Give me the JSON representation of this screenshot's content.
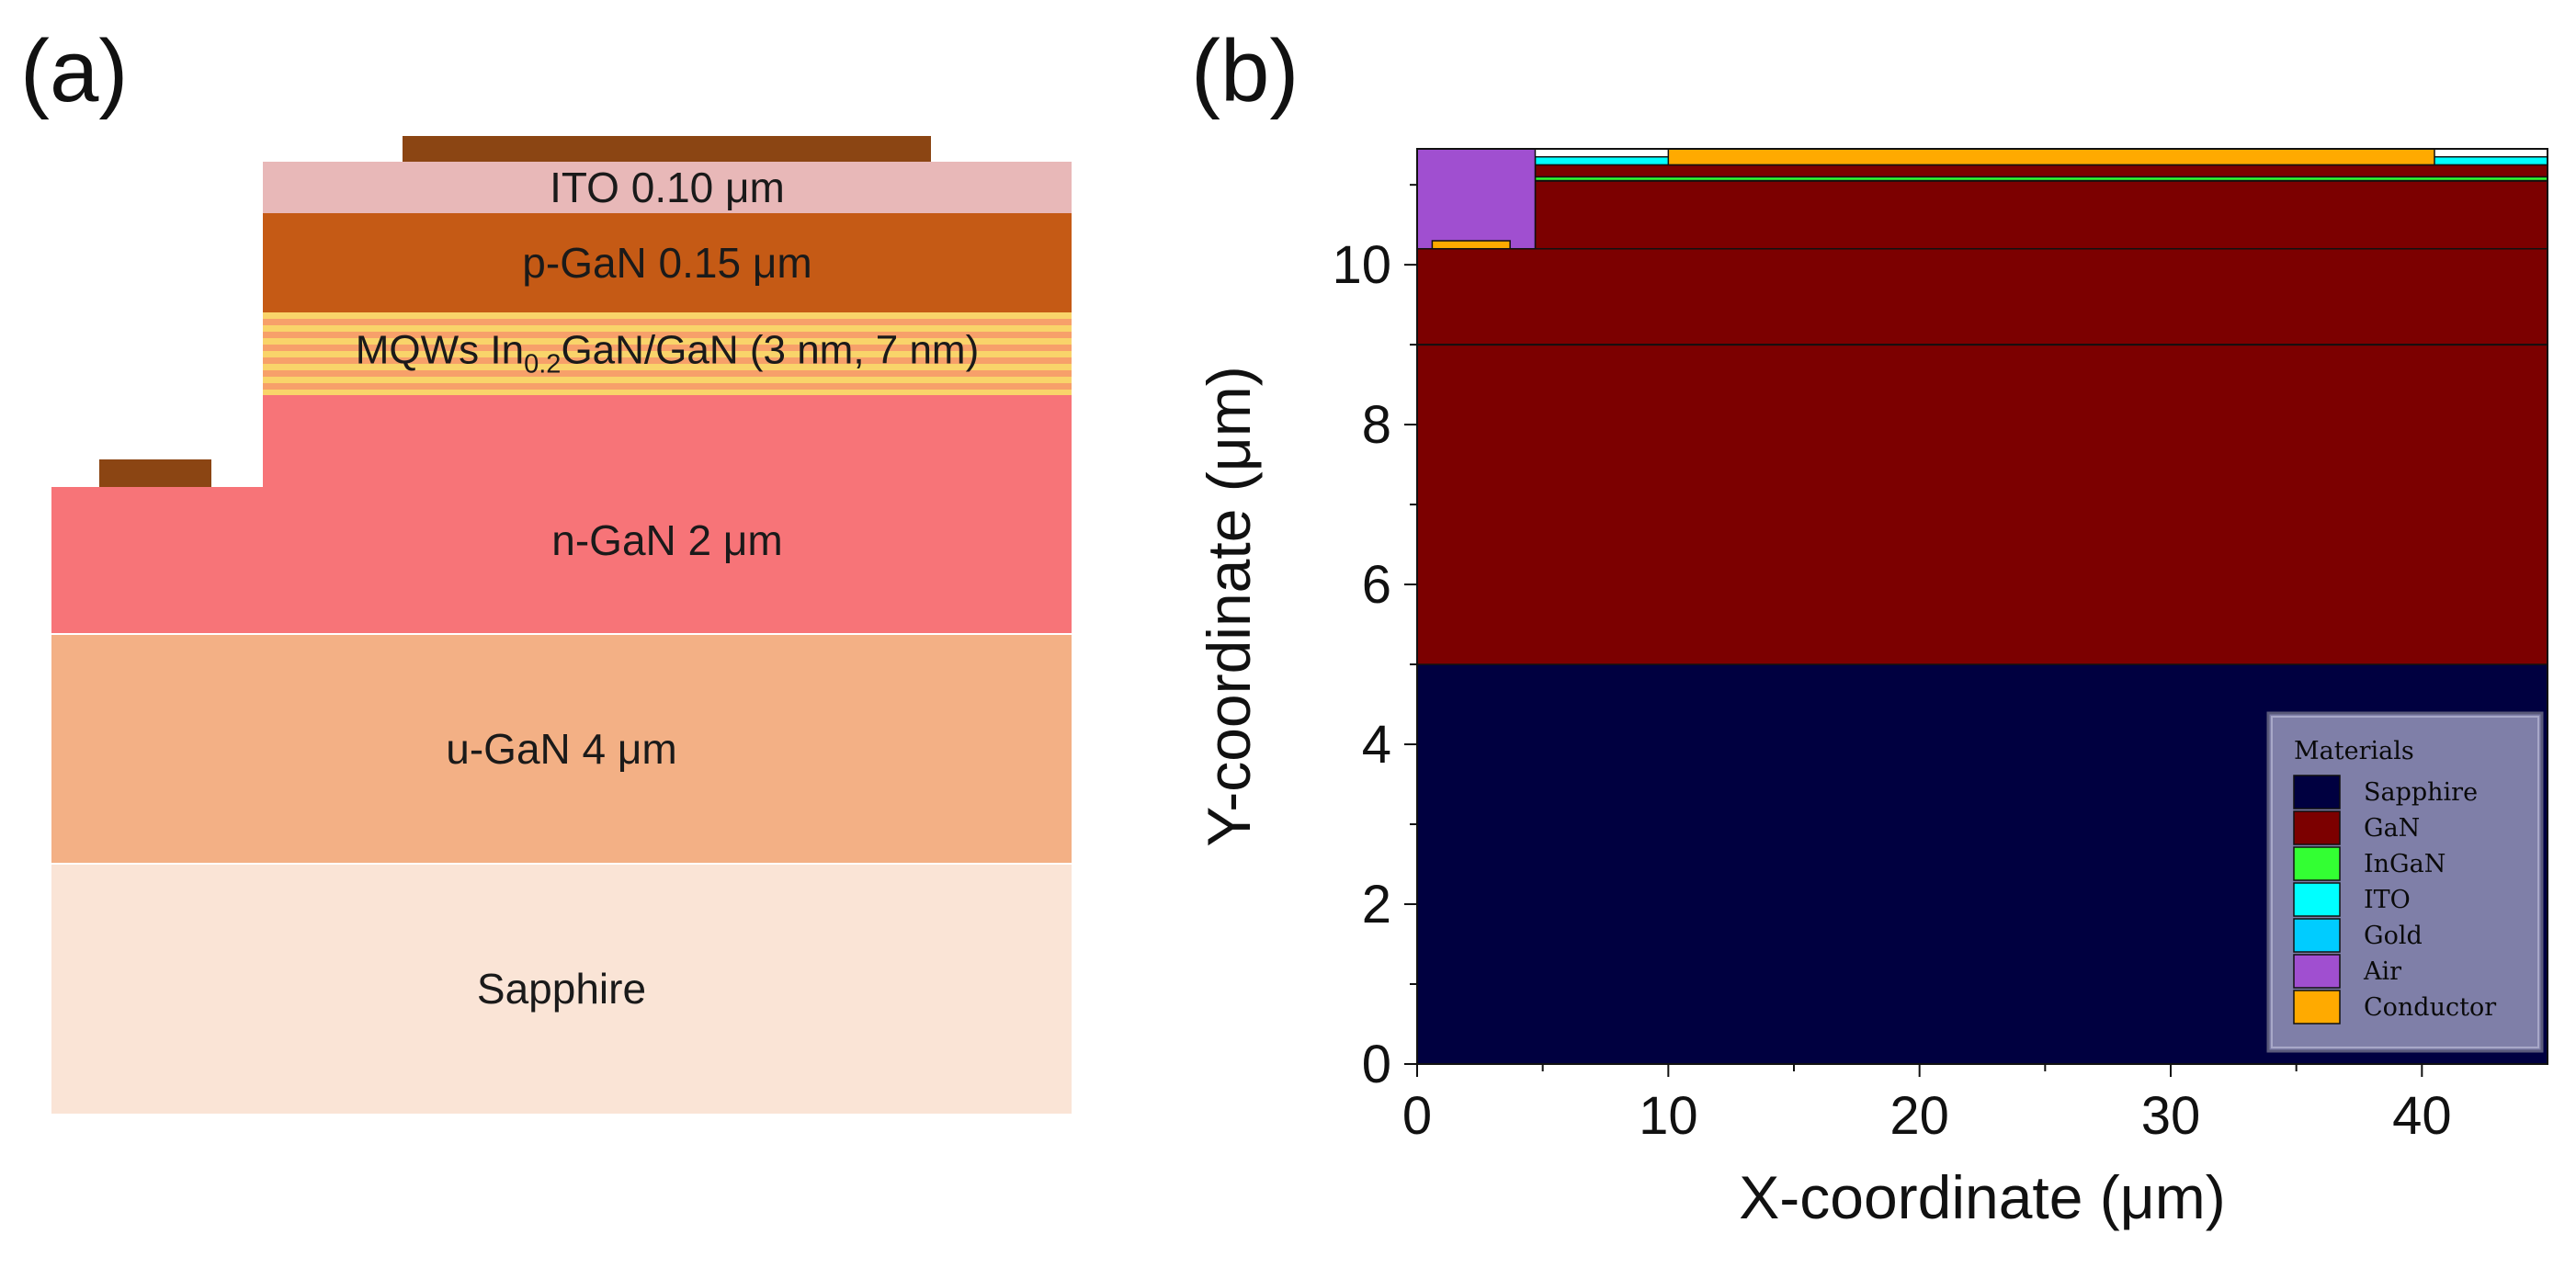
{
  "panel_a": {
    "label": "(a)",
    "layers": {
      "ito": "ITO 0.10 μm",
      "pgan": "p-GaN 0.15 μm",
      "mqw_prefix": "MQWs In",
      "mqw_sub": "0.2",
      "mqw_suffix": "GaN/GaN (3 nm, 7 nm)",
      "ngan": "n-GaN 2 μm",
      "ugan": "u-GaN 4 μm",
      "sapphire": "Sapphire"
    },
    "colors": {
      "ito": "#e8b8b8",
      "pgan": "#c55a15",
      "mqw_a": "#f9d46a",
      "mqw_b": "#f7a06a",
      "ngan": "#f77478",
      "ugan": "#f3b085",
      "sapphire": "#fae4d6",
      "contact": "#8b4513"
    }
  },
  "panel_b": {
    "label": "(b)",
    "chart_data": {
      "type": "heatmap",
      "title": "",
      "xlabel": "X-coordinate (μm)",
      "ylabel": "Y-coordinate (μm)",
      "xlim": [
        0,
        45
      ],
      "ylim": [
        0,
        11.45
      ],
      "xticks": [
        0,
        10,
        20,
        30,
        40
      ],
      "yticks": [
        0,
        2,
        4,
        6,
        8,
        10
      ],
      "regions": [
        {
          "material": "Sapphire",
          "x": [
            0,
            45
          ],
          "y": [
            0,
            5
          ]
        },
        {
          "material": "GaN",
          "x": [
            0,
            45
          ],
          "y": [
            5,
            10.2
          ]
        },
        {
          "material": "GaN",
          "x": [
            4.7,
            45
          ],
          "y": [
            10.2,
            11.05
          ]
        },
        {
          "material": "InGaN",
          "x": [
            4.7,
            45
          ],
          "y": [
            11.05,
            11.1
          ]
        },
        {
          "material": "GaN",
          "x": [
            4.7,
            45
          ],
          "y": [
            11.1,
            11.25
          ]
        },
        {
          "material": "ITO",
          "x": [
            4.7,
            45
          ],
          "y": [
            11.25,
            11.35
          ]
        },
        {
          "material": "Air",
          "x": [
            0,
            4.7
          ],
          "y": [
            10.2,
            11.45
          ]
        },
        {
          "material": "Conductor",
          "x": [
            0.6,
            3.7
          ],
          "y": [
            10.2,
            10.3
          ]
        },
        {
          "material": "Conductor",
          "x": [
            10,
            40.5
          ],
          "y": [
            11.25,
            11.45
          ]
        }
      ],
      "boundaries_y": [
        9,
        11.05
      ],
      "legend": {
        "title": "Materials",
        "position": "bottom-right",
        "entries": [
          {
            "name": "Sapphire",
            "color": "#000040"
          },
          {
            "name": "GaN",
            "color": "#7c0000"
          },
          {
            "name": "InGaN",
            "color": "#33ff33"
          },
          {
            "name": "ITO",
            "color": "#00ffff"
          },
          {
            "name": "Gold",
            "color": "#00ccff"
          },
          {
            "name": "Air",
            "color": "#a04fd0"
          },
          {
            "name": "Conductor",
            "color": "#ffaa00"
          }
        ]
      }
    }
  }
}
